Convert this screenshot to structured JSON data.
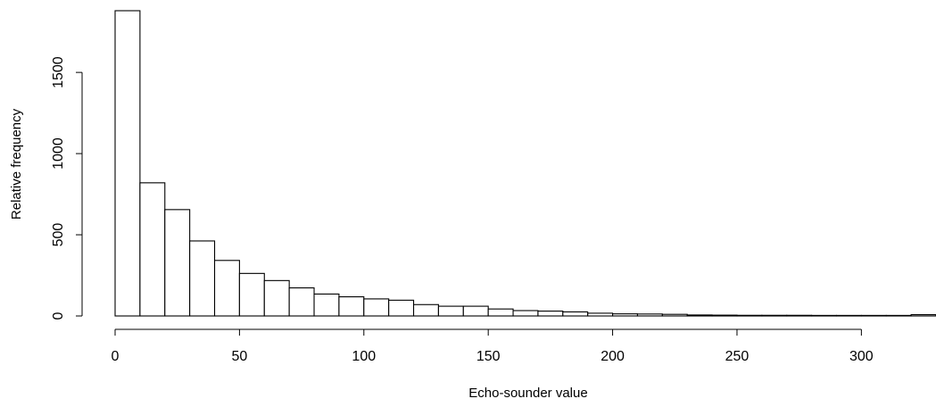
{
  "chart_data": {
    "type": "bar",
    "title": "",
    "xlabel": "Echo-sounder value",
    "ylabel": "Relative frequency",
    "bin_width": 10,
    "x_start": 0,
    "values": [
      1880,
      820,
      655,
      462,
      342,
      262,
      218,
      173,
      135,
      118,
      105,
      97,
      70,
      60,
      60,
      43,
      33,
      30,
      25,
      17,
      13,
      12,
      10,
      6,
      5,
      4,
      4,
      4,
      3,
      1,
      1,
      1,
      8
    ],
    "xlim": [
      0,
      330
    ],
    "ylim": [
      0,
      1880
    ],
    "x_ticks": [
      0,
      50,
      100,
      150,
      200,
      250,
      300
    ],
    "y_ticks": [
      0,
      500,
      1000,
      1500
    ],
    "grid": false,
    "legend": "none"
  }
}
